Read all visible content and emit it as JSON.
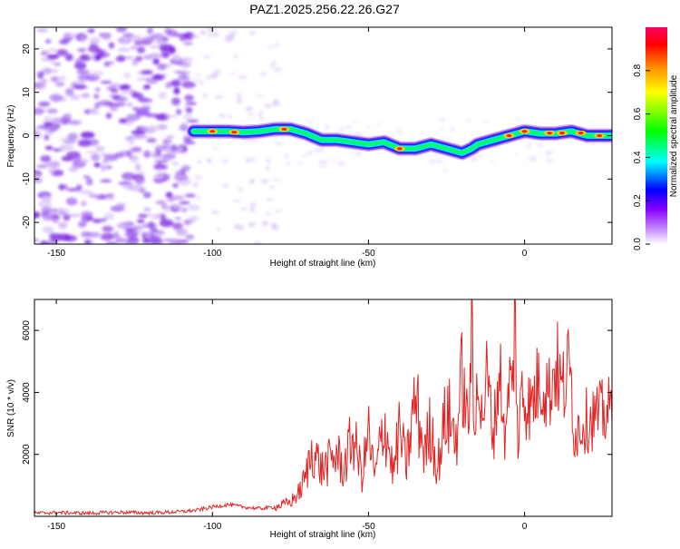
{
  "title": "PAZ1.2025.256.22.26.G27",
  "chart_data": [
    {
      "type": "heatmap",
      "xlabel": "Height of straight line (km)",
      "ylabel": "Frequency (Hz)",
      "xlim": [
        -157,
        28
      ],
      "ylim": [
        -25,
        25
      ],
      "xticks": [
        -150,
        -100,
        -50,
        0
      ],
      "yticks": [
        -20,
        -10,
        0,
        10,
        20
      ],
      "ridge": {
        "x": [
          -106,
          -100,
          -95,
          -90,
          -85,
          -80,
          -75,
          -70,
          -65,
          -60,
          -55,
          -50,
          -45,
          -40,
          -35,
          -30,
          -25,
          -20,
          -17,
          -15,
          -10,
          -5,
          0,
          5,
          10,
          15,
          20,
          25,
          28
        ],
        "y": [
          1,
          1,
          1,
          0.8,
          1,
          1.5,
          1.5,
          0.5,
          -1,
          -1,
          -1.5,
          -2,
          -1.5,
          -3,
          -3,
          -2,
          -3,
          -4,
          -3,
          -2,
          -1,
          0,
          1,
          0.5,
          0.5,
          1,
          0,
          0,
          0
        ]
      },
      "colorbar": {
        "label": "Normalized spectral amplitude",
        "ticks": [
          "0.0",
          "0.2",
          "0.4",
          "0.6",
          "0.8"
        ],
        "stops": [
          "#ffffff",
          "#cc99ff",
          "#8800ff",
          "#0000ff",
          "#00ffff",
          "#00ff00",
          "#ffff00",
          "#ff8800",
          "#ff0000",
          "#ff0066"
        ]
      }
    },
    {
      "type": "line",
      "xlabel": "Height of straight line (km)",
      "ylabel": "SNR (10 * v/v)",
      "xlim": [
        -157,
        28
      ],
      "ylim": [
        0,
        7000
      ],
      "xticks": [
        -150,
        -100,
        -50,
        0
      ],
      "yticks": [
        2000,
        4000,
        6000
      ],
      "color": "#e32222",
      "x": [
        -157,
        -150,
        -140,
        -130,
        -120,
        -110,
        -105,
        -100,
        -95,
        -90,
        -85,
        -80,
        -75,
        -72,
        -70,
        -68,
        -65,
        -62,
        -60,
        -58,
        -55,
        -52,
        -50,
        -48,
        -45,
        -42,
        -40,
        -38,
        -35,
        -32,
        -30,
        -28,
        -25,
        -22,
        -20,
        -18,
        -17,
        -16,
        -15,
        -14,
        -12,
        -10,
        -8,
        -6,
        -5,
        -4,
        -3,
        -2,
        -1,
        0,
        2,
        5,
        8,
        10,
        12,
        14,
        15,
        16,
        18,
        20,
        22,
        25,
        28
      ],
      "y": [
        100,
        120,
        100,
        130,
        110,
        150,
        200,
        300,
        380,
        300,
        250,
        300,
        450,
        800,
        1300,
        2200,
        1500,
        1800,
        2000,
        1500,
        2600,
        1300,
        2700,
        1200,
        3100,
        1400,
        2800,
        1600,
        3800,
        2000,
        3000,
        1500,
        3400,
        2500,
        4400,
        2800,
        6300,
        1800,
        5800,
        3000,
        4500,
        2600,
        4800,
        2200,
        4600,
        3800,
        7000,
        1300,
        4800,
        3800,
        3500,
        4500,
        4000,
        5000,
        4000,
        4700,
        4300,
        2600,
        3000,
        3100,
        3200,
        3300,
        3400
      ]
    }
  ]
}
